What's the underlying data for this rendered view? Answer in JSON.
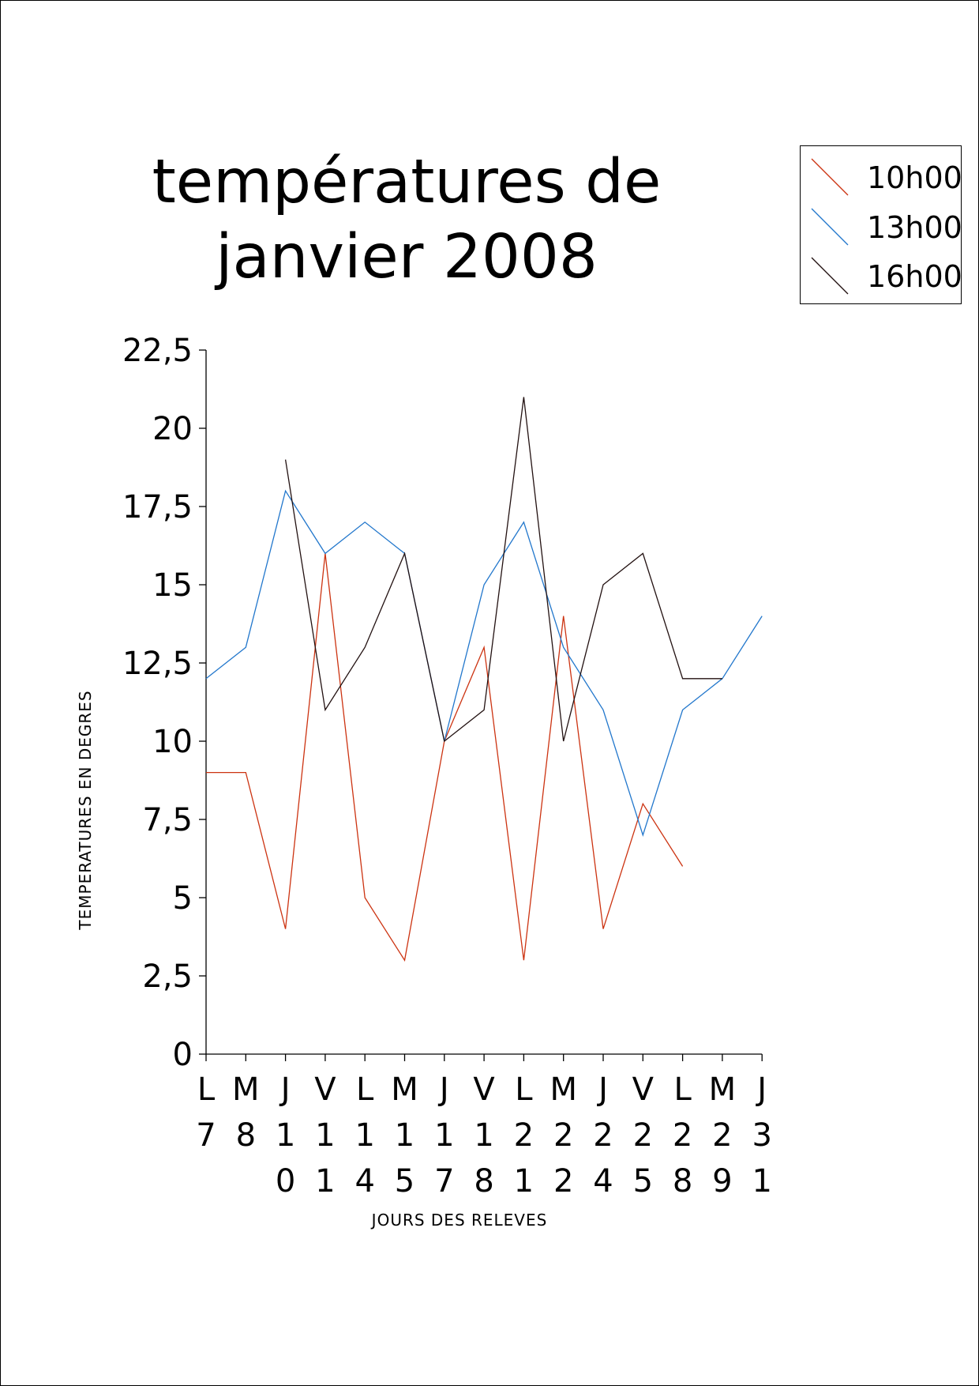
{
  "chart_data": {
    "type": "line",
    "title": [
      "températures  de",
      "janvier 2008"
    ],
    "xlabel": "JOURS DES RELEVES",
    "ylabel": "TEMPERATURES EN DEGRES",
    "ylim": [
      0,
      22.5
    ],
    "yticks": [
      "0",
      "2,5",
      "5",
      "7,5",
      "10",
      "12,5",
      "15",
      "17,5",
      "20",
      "22,5"
    ],
    "categories": [
      "L 7",
      "M 8",
      "J 10",
      "V 11",
      "L 14",
      "M 15",
      "J 17",
      "V 18",
      "L 21",
      "M 22",
      "J 24",
      "V 25",
      "L 28",
      "M 29",
      "J 31"
    ],
    "category_labels": [
      [
        "L",
        "7"
      ],
      [
        "M",
        "8"
      ],
      [
        "J",
        "1",
        "0"
      ],
      [
        "V",
        "1",
        "1"
      ],
      [
        "L",
        "1",
        "4"
      ],
      [
        "M",
        "1",
        "5"
      ],
      [
        "J",
        "1",
        "7"
      ],
      [
        "V",
        "1",
        "8"
      ],
      [
        "L",
        "2",
        "1"
      ],
      [
        "M",
        "2",
        "2"
      ],
      [
        "J",
        "2",
        "4"
      ],
      [
        "V",
        "2",
        "5"
      ],
      [
        "L",
        "2",
        "8"
      ],
      [
        "M",
        "2",
        "9"
      ],
      [
        "J",
        "3",
        "1"
      ]
    ],
    "legend_position": "top-right",
    "grid": false,
    "series": [
      {
        "name": "10h00",
        "color": "#cc3311",
        "values": [
          9,
          9,
          4,
          16,
          5,
          3,
          10,
          13,
          3,
          14,
          4,
          8,
          6,
          null,
          null
        ]
      },
      {
        "name": "13h00",
        "color": "#2277cc",
        "values": [
          12,
          13,
          18,
          16,
          17,
          16,
          10,
          15,
          17,
          13,
          11,
          7,
          11,
          12,
          14
        ]
      },
      {
        "name": "16h00",
        "color": "#221111",
        "values": [
          null,
          null,
          19,
          11,
          13,
          16,
          10,
          11,
          21,
          10,
          15,
          16,
          12,
          12,
          null
        ]
      }
    ]
  }
}
